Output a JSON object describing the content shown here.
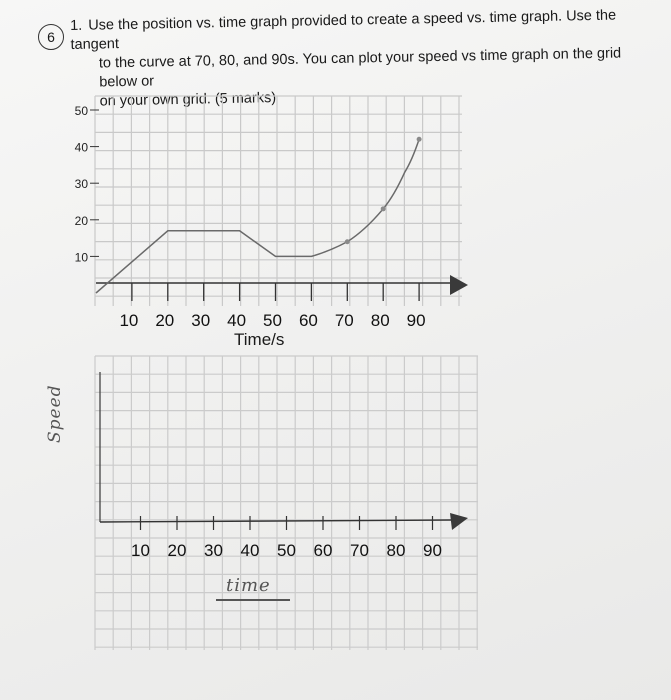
{
  "question": {
    "margin_mark": "6",
    "number": "1.",
    "lines": [
      "Use the position vs. time graph provided to create a speed vs. time graph.  Use the tangent",
      "to the curve at 70, 80, and 90s.  You can plot your speed vs time graph on the grid below or",
      "on your own grid.  (5 marks)"
    ]
  },
  "chart_data": [
    {
      "type": "line",
      "title": "",
      "xlabel": "Time/s",
      "ylabel": "",
      "x_ticks": [
        "10",
        "20",
        "30",
        "40",
        "50",
        "60",
        "70",
        "80",
        "90"
      ],
      "y_ticks": [
        "10",
        "20",
        "30",
        "40",
        "50"
      ],
      "xlim": [
        0,
        100
      ],
      "ylim": [
        0,
        50
      ],
      "grid": true,
      "series": [
        {
          "values": [
            {
              "x": 0,
              "y": 0
            },
            {
              "x": 20,
              "y": 17
            },
            {
              "x": 40,
              "y": 17
            },
            {
              "x": 50,
              "y": 10
            },
            {
              "x": 60,
              "y": 10
            },
            {
              "x": 70,
              "y": 14
            },
            {
              "x": 80,
              "y": 23
            },
            {
              "x": 86,
              "y": 33
            },
            {
              "x": 90,
              "y": 42
            }
          ]
        }
      ],
      "tangent_points_x": [
        70,
        80,
        90
      ]
    },
    {
      "type": "line",
      "title": "",
      "xlabel": "time",
      "ylabel": "Speed",
      "x_ticks": [
        "10",
        "20",
        "30",
        "40",
        "50",
        "60",
        "70",
        "80",
        "90"
      ],
      "xlim": [
        0,
        100
      ],
      "grid": true,
      "series": []
    }
  ]
}
